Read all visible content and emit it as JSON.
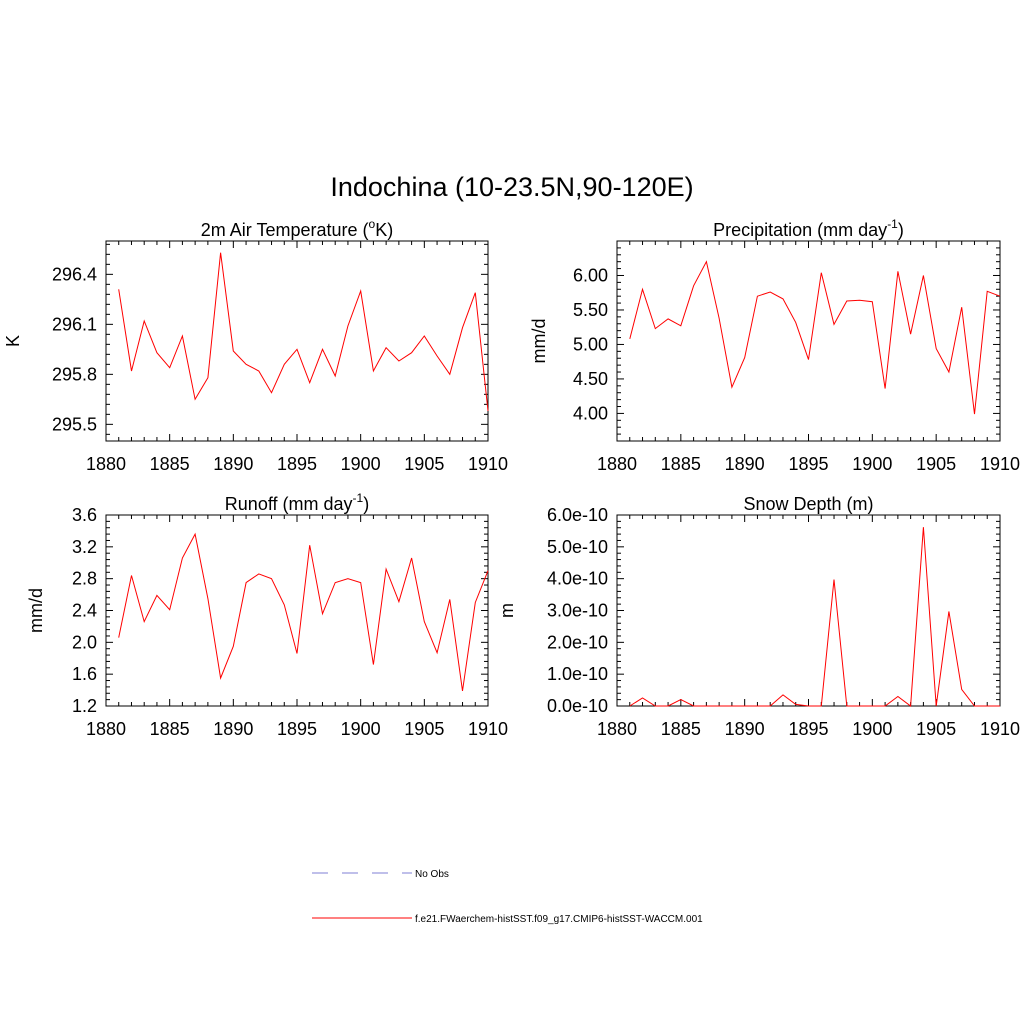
{
  "title": "Indochina (10-23.5N,90-120E)",
  "colors": {
    "series": "#ff0000",
    "obs": "#9999dd",
    "axis": "#000000"
  },
  "legend": {
    "items": [
      {
        "label": "No Obs",
        "style": "dashed",
        "color": "#9999dd"
      },
      {
        "label": "f.e21.FWaerchem-histSST.f09_g17.CMIP6-histSST-WACCM.001",
        "style": "solid",
        "color": "#ff0000"
      }
    ]
  },
  "chart_data": [
    {
      "type": "line",
      "title": "2m Air Temperature (",
      "title_sup": "o",
      "title_tail": "K)",
      "ylabel": "K",
      "xlim": [
        1880,
        1910
      ],
      "ylim": [
        295.4,
        296.6
      ],
      "xticks": [
        1880,
        1885,
        1890,
        1895,
        1900,
        1905,
        1910
      ],
      "yticks": [
        295.5,
        295.8,
        296.1,
        296.4
      ],
      "ytick_labels": [
        "295.5",
        "295.8",
        "296.1",
        "296.4"
      ],
      "series": [
        {
          "x": [
            1881,
            1882,
            1883,
            1884,
            1885,
            1886,
            1887,
            1888,
            1889,
            1890,
            1891,
            1892,
            1893,
            1894,
            1895,
            1896,
            1897,
            1898,
            1899,
            1900,
            1901,
            1902,
            1903,
            1904,
            1905,
            1906,
            1907,
            1908,
            1909,
            1910
          ],
          "values": [
            296.31,
            295.82,
            296.12,
            295.93,
            295.84,
            296.03,
            295.65,
            295.78,
            296.53,
            295.94,
            295.86,
            295.82,
            295.69,
            295.86,
            295.95,
            295.75,
            295.95,
            295.79,
            296.09,
            296.3,
            295.82,
            295.96,
            295.88,
            295.93,
            296.03,
            295.91,
            295.8,
            296.08,
            296.29,
            295.58
          ]
        }
      ]
    },
    {
      "type": "line",
      "title": "Precipitation (mm day",
      "title_sup": "-1",
      "title_tail": ")",
      "ylabel": "mm/d",
      "xlim": [
        1880,
        1910
      ],
      "ylim": [
        3.6,
        6.5
      ],
      "xticks": [
        1880,
        1885,
        1890,
        1895,
        1900,
        1905,
        1910
      ],
      "yticks": [
        4.0,
        4.5,
        5.0,
        5.5,
        6.0
      ],
      "ytick_labels": [
        "4.00",
        "4.50",
        "5.00",
        "5.50",
        "6.00"
      ],
      "series": [
        {
          "x": [
            1881,
            1882,
            1883,
            1884,
            1885,
            1886,
            1887,
            1888,
            1889,
            1890,
            1891,
            1892,
            1893,
            1894,
            1895,
            1896,
            1897,
            1898,
            1899,
            1900,
            1901,
            1902,
            1903,
            1904,
            1905,
            1906,
            1907,
            1908,
            1909,
            1910
          ],
          "values": [
            5.08,
            5.8,
            5.23,
            5.37,
            5.27,
            5.85,
            6.2,
            5.38,
            4.38,
            4.81,
            5.7,
            5.76,
            5.66,
            5.32,
            4.78,
            6.04,
            5.29,
            5.63,
            5.64,
            5.62,
            4.36,
            6.06,
            5.15,
            6.0,
            4.94,
            4.6,
            5.54,
            3.99,
            5.77,
            5.7
          ]
        }
      ]
    },
    {
      "type": "line",
      "title": "Runoff (mm day",
      "title_sup": "-1",
      "title_tail": ")",
      "ylabel": "mm/d",
      "xlim": [
        1880,
        1910
      ],
      "ylim": [
        1.2,
        3.6
      ],
      "xticks": [
        1880,
        1885,
        1890,
        1895,
        1900,
        1905,
        1910
      ],
      "yticks": [
        1.2,
        1.6,
        2.0,
        2.4,
        2.8,
        3.2,
        3.6
      ],
      "ytick_labels": [
        "1.2",
        "1.6",
        "2.0",
        "2.4",
        "2.8",
        "3.2",
        "3.6"
      ],
      "series": [
        {
          "x": [
            1881,
            1882,
            1883,
            1884,
            1885,
            1886,
            1887,
            1888,
            1889,
            1890,
            1891,
            1892,
            1893,
            1894,
            1895,
            1896,
            1897,
            1898,
            1899,
            1900,
            1901,
            1902,
            1903,
            1904,
            1905,
            1906,
            1907,
            1908,
            1909,
            1910
          ],
          "values": [
            2.06,
            2.84,
            2.26,
            2.59,
            2.41,
            3.06,
            3.36,
            2.55,
            1.55,
            1.95,
            2.75,
            2.86,
            2.8,
            2.47,
            1.86,
            3.22,
            2.36,
            2.75,
            2.8,
            2.75,
            1.72,
            2.92,
            2.51,
            3.06,
            2.26,
            1.87,
            2.54,
            1.39,
            2.5,
            2.9
          ]
        }
      ]
    },
    {
      "type": "line",
      "title": "Snow Depth (m)",
      "title_sup": "",
      "title_tail": "",
      "ylabel": "m",
      "xlim": [
        1880,
        1910
      ],
      "ylim": [
        0,
        6e-10
      ],
      "xticks": [
        1880,
        1885,
        1890,
        1895,
        1900,
        1905,
        1910
      ],
      "yticks": [
        0,
        1e-10,
        2e-10,
        3e-10,
        4e-10,
        5e-10,
        6e-10
      ],
      "ytick_labels": [
        "0.0e-10",
        "1.0e-10",
        "2.0e-10",
        "3.0e-10",
        "4.0e-10",
        "5.0e-10",
        "6.0e-10"
      ],
      "series": [
        {
          "x": [
            1881,
            1882,
            1883,
            1884,
            1885,
            1886,
            1887,
            1888,
            1889,
            1890,
            1891,
            1892,
            1893,
            1894,
            1895,
            1896,
            1897,
            1898,
            1899,
            1900,
            1901,
            1902,
            1903,
            1904,
            1905,
            1906,
            1907,
            1908,
            1909,
            1910
          ],
          "values": [
            0,
            2.5e-11,
            0,
            0,
            2e-11,
            0,
            0,
            0,
            0,
            0,
            0,
            0,
            3.5e-11,
            5e-12,
            0,
            0,
            3.97e-10,
            0,
            0,
            0,
            0,
            3e-11,
            0,
            5.62e-10,
            0,
            2.97e-10,
            5.2e-11,
            0,
            0,
            0
          ]
        }
      ]
    }
  ]
}
